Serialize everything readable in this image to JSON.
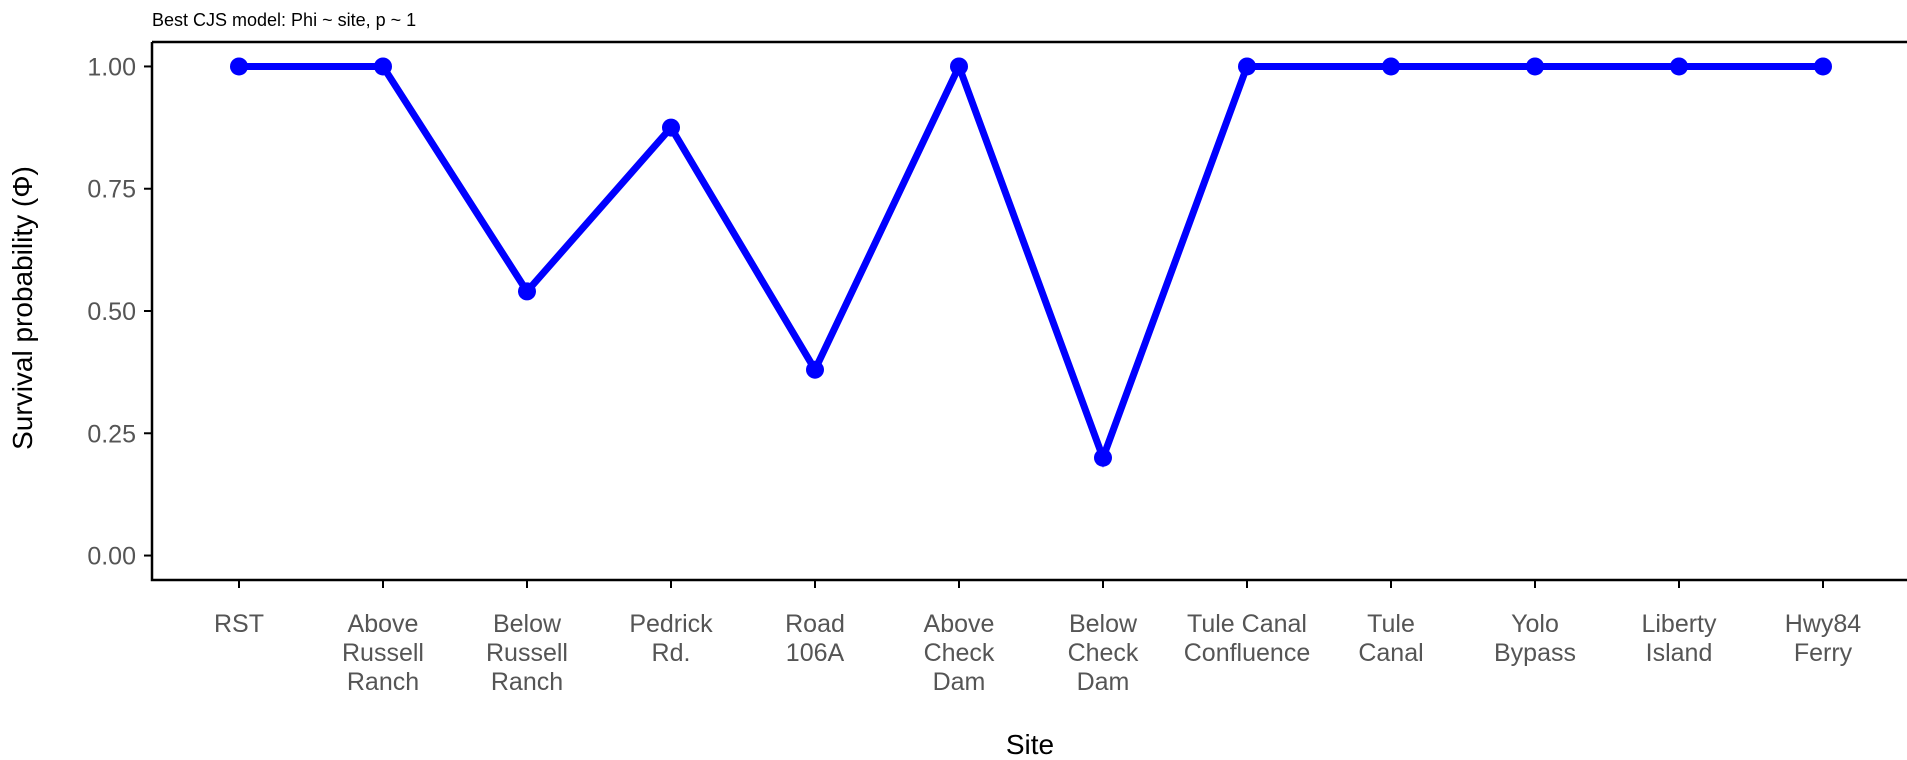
{
  "chart_data": {
    "type": "line",
    "title": "Best CJS model: Phi ~ site, p ~ 1",
    "xlabel": "Site",
    "ylabel": "Survival probability (Φ)",
    "categories": [
      [
        "RST"
      ],
      [
        "Above",
        "Russell",
        "Ranch"
      ],
      [
        "Below",
        "Russell",
        "Ranch"
      ],
      [
        "Pedrick",
        "Rd."
      ],
      [
        "Road",
        "106A"
      ],
      [
        "Above",
        "Check",
        "Dam"
      ],
      [
        "Below",
        "Check",
        "Dam"
      ],
      [
        "Tule Canal",
        "Confluence"
      ],
      [
        "Tule",
        "Canal"
      ],
      [
        "Yolo",
        "Bypass"
      ],
      [
        "Liberty",
        "Island"
      ],
      [
        "Hwy84",
        "Ferry"
      ]
    ],
    "series": [
      {
        "values": [
          1.0,
          1.0,
          0.54,
          0.875,
          0.38,
          1.0,
          0.2,
          1.0,
          1.0,
          1.0,
          1.0,
          1.0
        ]
      }
    ],
    "ylim": [
      -0.05,
      1.05
    ],
    "yticks": [
      0.0,
      0.25,
      0.5,
      0.75,
      1.0
    ],
    "ytick_labels": [
      "0.00",
      "0.25",
      "0.50",
      "0.75",
      "1.00"
    ],
    "grid": false,
    "legend": "none",
    "colors": {
      "line": "#0000ff",
      "axis": "#000000",
      "tick_text": "#555555"
    }
  }
}
